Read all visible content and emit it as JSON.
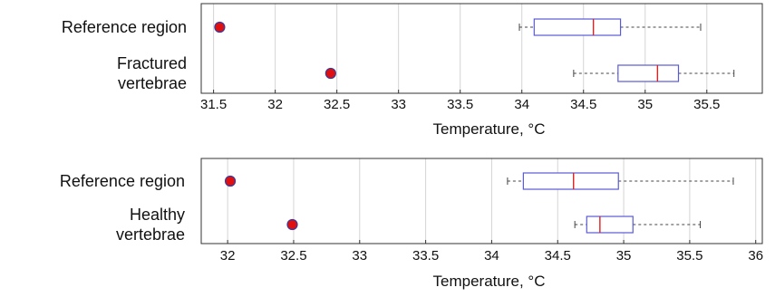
{
  "chart_data": [
    {
      "type": "box",
      "title": "",
      "xlabel": "Temperature, °C",
      "xlim": [
        31.4,
        35.95
      ],
      "xticks": [
        31.5,
        32,
        32.5,
        33,
        33.5,
        34,
        34.5,
        35,
        35.5
      ],
      "xtick_labels": [
        "31.5",
        "32",
        "32.5",
        "33",
        "33.5",
        "34",
        "34.5",
        "35",
        "35.5"
      ],
      "grid": "vertical",
      "categories": [
        {
          "label_lines": [
            "Reference region"
          ]
        },
        {
          "label_lines": [
            "Fractured",
            "vertebrae"
          ]
        }
      ],
      "series": [
        {
          "kind": "point",
          "values": [
            31.55,
            32.45
          ]
        },
        {
          "kind": "boxplot",
          "boxes": [
            {
              "whisker_low": 33.98,
              "q1": 34.1,
              "median": 34.58,
              "q3": 34.8,
              "whisker_high": 35.45
            },
            {
              "whisker_low": 34.42,
              "q1": 34.78,
              "median": 35.1,
              "q3": 35.27,
              "whisker_high": 35.72
            }
          ]
        }
      ]
    },
    {
      "type": "box",
      "title": "",
      "xlabel": "Temperature, °C",
      "xlim": [
        31.8,
        36.05
      ],
      "xticks": [
        32,
        32.5,
        33,
        33.5,
        34,
        34.5,
        35,
        35.5,
        36
      ],
      "xtick_labels": [
        "32",
        "32.5",
        "33",
        "33.5",
        "34",
        "34.5",
        "35",
        "35.5",
        "36"
      ],
      "grid": "vertical",
      "categories": [
        {
          "label_lines": [
            "Reference region"
          ]
        },
        {
          "label_lines": [
            "Healthy",
            "vertebrae"
          ]
        }
      ],
      "series": [
        {
          "kind": "point",
          "values": [
            32.02,
            32.49
          ]
        },
        {
          "kind": "boxplot",
          "boxes": [
            {
              "whisker_low": 34.12,
              "q1": 34.24,
              "median": 34.62,
              "q3": 34.96,
              "whisker_high": 35.83
            },
            {
              "whisker_low": 34.63,
              "q1": 34.72,
              "median": 34.82,
              "q3": 35.07,
              "whisker_high": 35.58
            }
          ]
        }
      ]
    }
  ],
  "colors": {
    "point_fill": "#e01010",
    "point_stroke": "#3a3a9a",
    "box_stroke": "#5a5ad6",
    "median": "#e02020",
    "whisker": "#444444",
    "grid": "#d4d4d4",
    "axis": "#333333"
  }
}
